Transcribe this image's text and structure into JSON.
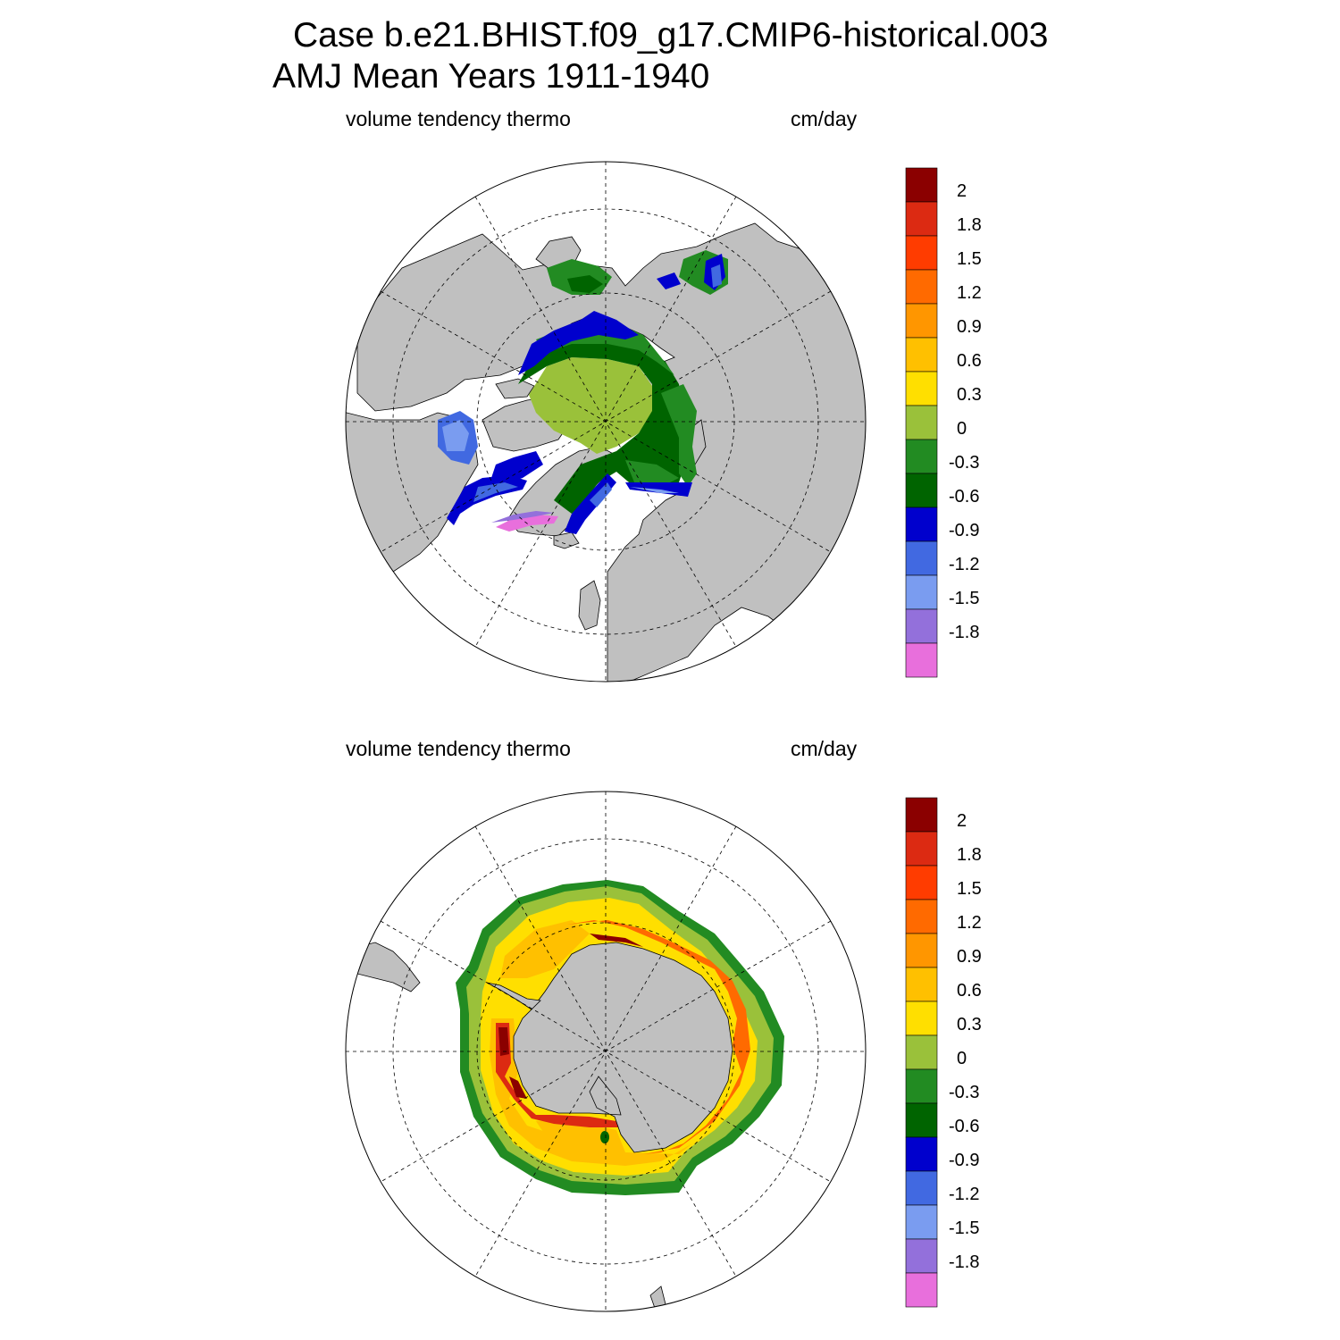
{
  "title": {
    "line1": "Case b.e21.BHIST.f09_g17.CMIP6-historical.003",
    "line2": "AMJ Mean   Years 1911-1940"
  },
  "colorbar": {
    "labels": [
      "2",
      "1.8",
      "1.5",
      "1.2",
      "0.9",
      "0.6",
      "0.3",
      "0",
      "-0.3",
      "-0.6",
      "-0.9",
      "-1.2",
      "-1.5",
      "-1.8"
    ],
    "colors_top_to_bottom": [
      "#8b0000",
      "#dc2a12",
      "#ff3c00",
      "#ff6a00",
      "#ff9600",
      "#ffc000",
      "#ffdf00",
      "#9ac13a",
      "#228b22",
      "#006400",
      "#0000cd",
      "#4169e1",
      "#7a9cf0",
      "#9370db",
      "#e86fdc"
    ]
  },
  "panels": [
    {
      "id": "north",
      "variable": "volume tendency thermo",
      "units": "cm/day",
      "hemisphere": "Arctic",
      "projection": "polar stereographic"
    },
    {
      "id": "south",
      "variable": "volume tendency thermo",
      "units": "cm/day",
      "hemisphere": "Antarctic",
      "projection": "polar stereographic"
    }
  ],
  "colors": {
    "land": "#c0c0c0",
    "ocean": "#ffffff"
  }
}
